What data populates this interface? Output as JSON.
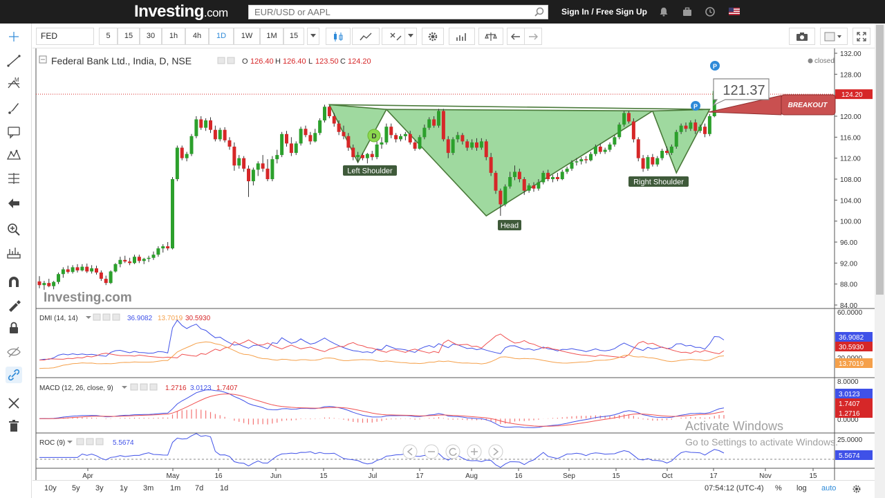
{
  "site": {
    "logo_main": "Investing",
    "logo_suffix": ".com",
    "search_placeholder": "EUR/USD or AAPL",
    "signin": "Sign In / Free Sign Up"
  },
  "toolbar": {
    "symbol": "FED",
    "intervals": [
      "5",
      "15",
      "30",
      "1h",
      "4h",
      "1D",
      "1W",
      "1M",
      "15"
    ],
    "active_interval": "1D"
  },
  "legend": {
    "title": "Federal Bank Ltd., India, D, NSE",
    "o_label": "O",
    "o": "126.40",
    "h_label": "H",
    "h": "126.40",
    "l_label": "L",
    "l": "123.50",
    "c_label": "C",
    "c": "124.20",
    "status": "closed"
  },
  "watermark": "Investing.com",
  "annotations": {
    "left_shoulder": "Left Shoulder",
    "head": "Head",
    "right_shoulder": "Right Shoulder",
    "breakout": "BREAKOUT",
    "price_callout": "121.37",
    "d_marker": "D",
    "p_marker": "P"
  },
  "price_axis": {
    "ticks": [
      "132.00",
      "128.00",
      "124.00",
      "120.00",
      "116.00",
      "112.00",
      "108.00",
      "104.00",
      "100.00",
      "96.00",
      "92.00",
      "88.00",
      "84.00"
    ],
    "last_price": "124.20"
  },
  "indicators": {
    "dmi": {
      "label": "DMI (14, 14)",
      "v1": "36.9082",
      "v2": "13.7019",
      "v3": "30.5930",
      "axis": [
        "60.0000",
        "20.0000"
      ]
    },
    "macd": {
      "label": "MACD (12, 26, close, 9)",
      "v1": "1.2716",
      "v2": "3.0123",
      "v3": "1.7407",
      "axis": [
        "8.0000",
        "4.0000",
        "0.0000"
      ]
    },
    "roc": {
      "label": "ROC (9)",
      "v1": "5.5674",
      "axis": [
        "25.0000"
      ]
    }
  },
  "time_axis": [
    "Apr",
    "May",
    "16",
    "Jun",
    "15",
    "Jul",
    "17",
    "Aug",
    "16",
    "Sep",
    "15",
    "Oct",
    "17",
    "Nov",
    "15"
  ],
  "bottom": {
    "ranges": [
      "10y",
      "5y",
      "3y",
      "1y",
      "3m",
      "1m",
      "7d",
      "1d"
    ],
    "clock": "07:54:12 (UTC-4)",
    "pct": "%",
    "log": "log",
    "auto": "auto"
  },
  "os_overlay": {
    "line1": "Activate Windows",
    "line2": "Go to Settings to activate Windows."
  },
  "colors": {
    "up": "#2ca02c",
    "down": "#d62728",
    "pattern_fill": "#8fd18f",
    "dmi_plus": "#3f51e8",
    "dmi_minus": "#f05050",
    "adx": "#f5a04a",
    "accent": "#2e8ad8"
  },
  "chart_data": {
    "type": "candlestick",
    "title": "Federal Bank Ltd., India, D, NSE",
    "ylim": [
      84,
      132
    ],
    "pattern": {
      "name": "Head and Shoulders (inverse)",
      "points": [
        {
          "label": "",
          "x": "Jun 15",
          "y": 122.2
        },
        {
          "label": "Left Shoulder",
          "x": "Jul 3",
          "y": 111.2
        },
        {
          "label": "",
          "x": "Jul 24",
          "y": 121.3
        },
        {
          "label": "Head",
          "x": "Aug 14",
          "y": 101.0
        },
        {
          "label": "",
          "x": "Sep 17",
          "y": 121.0
        },
        {
          "label": "Right Shoulder",
          "x": "Sep 27",
          "y": 109.2
        },
        {
          "label": "",
          "x": "Oct 17",
          "y": 121.3
        }
      ]
    },
    "last_close": 124.2,
    "candles": [
      {
        "o": 88.5,
        "h": 89.5,
        "l": 87.2,
        "c": 87.8
      },
      {
        "o": 87.8,
        "h": 88.6,
        "l": 86.9,
        "c": 88.2
      },
      {
        "o": 88.2,
        "h": 89.0,
        "l": 87.4,
        "c": 87.6
      },
      {
        "o": 87.6,
        "h": 88.6,
        "l": 87.0,
        "c": 88.4
      },
      {
        "o": 88.4,
        "h": 90.2,
        "l": 88.0,
        "c": 89.9
      },
      {
        "o": 89.9,
        "h": 91.2,
        "l": 89.2,
        "c": 90.8
      },
      {
        "o": 90.8,
        "h": 91.5,
        "l": 90.0,
        "c": 90.3
      },
      {
        "o": 90.3,
        "h": 91.6,
        "l": 90.0,
        "c": 91.2
      },
      {
        "o": 91.2,
        "h": 91.8,
        "l": 90.2,
        "c": 90.6
      },
      {
        "o": 90.6,
        "h": 91.8,
        "l": 90.4,
        "c": 91.3
      },
      {
        "o": 91.3,
        "h": 91.9,
        "l": 90.1,
        "c": 90.4
      },
      {
        "o": 90.4,
        "h": 91.6,
        "l": 90.0,
        "c": 91.0
      },
      {
        "o": 91.0,
        "h": 91.5,
        "l": 89.8,
        "c": 90.2
      },
      {
        "o": 90.2,
        "h": 90.6,
        "l": 88.6,
        "c": 89.0
      },
      {
        "o": 89.0,
        "h": 89.6,
        "l": 87.8,
        "c": 88.2
      },
      {
        "o": 88.2,
        "h": 90.6,
        "l": 88.0,
        "c": 90.4
      },
      {
        "o": 90.4,
        "h": 92.0,
        "l": 90.2,
        "c": 91.8
      },
      {
        "o": 91.8,
        "h": 93.2,
        "l": 91.2,
        "c": 92.6
      },
      {
        "o": 92.6,
        "h": 93.4,
        "l": 92.0,
        "c": 92.3
      },
      {
        "o": 92.3,
        "h": 93.0,
        "l": 91.6,
        "c": 92.0
      },
      {
        "o": 92.0,
        "h": 93.6,
        "l": 91.8,
        "c": 93.2
      },
      {
        "o": 93.2,
        "h": 93.6,
        "l": 92.0,
        "c": 92.4
      },
      {
        "o": 92.4,
        "h": 93.0,
        "l": 91.8,
        "c": 92.8
      },
      {
        "o": 92.8,
        "h": 93.4,
        "l": 92.2,
        "c": 93.0
      },
      {
        "o": 93.0,
        "h": 94.2,
        "l": 92.6,
        "c": 93.6
      },
      {
        "o": 93.6,
        "h": 95.2,
        "l": 93.2,
        "c": 94.8
      },
      {
        "o": 94.8,
        "h": 95.6,
        "l": 94.0,
        "c": 95.2
      },
      {
        "o": 95.2,
        "h": 96.0,
        "l": 94.4,
        "c": 94.8
      },
      {
        "o": 94.8,
        "h": 108.4,
        "l": 94.6,
        "c": 108.0
      },
      {
        "o": 108.0,
        "h": 114.4,
        "l": 107.6,
        "c": 114.0
      },
      {
        "o": 114.0,
        "h": 114.4,
        "l": 111.6,
        "c": 112.0
      },
      {
        "o": 112.0,
        "h": 113.2,
        "l": 111.4,
        "c": 112.8
      },
      {
        "o": 112.8,
        "h": 116.6,
        "l": 112.4,
        "c": 116.2
      },
      {
        "o": 116.2,
        "h": 120.0,
        "l": 115.8,
        "c": 119.4
      },
      {
        "o": 119.4,
        "h": 120.0,
        "l": 117.4,
        "c": 117.8
      },
      {
        "o": 117.8,
        "h": 119.6,
        "l": 117.2,
        "c": 119.2
      },
      {
        "o": 119.2,
        "h": 119.8,
        "l": 116.8,
        "c": 117.4
      },
      {
        "o": 117.4,
        "h": 118.2,
        "l": 115.2,
        "c": 115.6
      },
      {
        "o": 115.6,
        "h": 117.8,
        "l": 115.2,
        "c": 117.4
      },
      {
        "o": 117.4,
        "h": 117.9,
        "l": 115.0,
        "c": 115.4
      },
      {
        "o": 115.4,
        "h": 116.0,
        "l": 113.6,
        "c": 114.2
      },
      {
        "o": 114.2,
        "h": 115.0,
        "l": 109.6,
        "c": 110.6
      },
      {
        "o": 110.6,
        "h": 112.6,
        "l": 110.0,
        "c": 112.0
      },
      {
        "o": 112.0,
        "h": 112.4,
        "l": 109.4,
        "c": 110.0
      },
      {
        "o": 110.0,
        "h": 110.6,
        "l": 104.6,
        "c": 107.6
      },
      {
        "o": 107.6,
        "h": 110.2,
        "l": 106.8,
        "c": 109.8
      },
      {
        "o": 109.8,
        "h": 111.4,
        "l": 108.6,
        "c": 111.0
      },
      {
        "o": 111.0,
        "h": 112.6,
        "l": 109.4,
        "c": 110.0
      },
      {
        "o": 110.0,
        "h": 111.8,
        "l": 107.6,
        "c": 108.0
      },
      {
        "o": 108.0,
        "h": 112.4,
        "l": 107.6,
        "c": 111.8
      },
      {
        "o": 111.8,
        "h": 113.6,
        "l": 111.0,
        "c": 112.6
      },
      {
        "o": 112.6,
        "h": 117.0,
        "l": 112.2,
        "c": 116.6
      },
      {
        "o": 116.6,
        "h": 117.2,
        "l": 114.2,
        "c": 114.8
      },
      {
        "o": 114.8,
        "h": 116.0,
        "l": 112.4,
        "c": 113.0
      },
      {
        "o": 113.0,
        "h": 115.2,
        "l": 112.6,
        "c": 114.8
      },
      {
        "o": 114.8,
        "h": 118.0,
        "l": 114.4,
        "c": 117.6
      },
      {
        "o": 117.6,
        "h": 118.2,
        "l": 116.0,
        "c": 116.4
      },
      {
        "o": 116.4,
        "h": 117.0,
        "l": 114.6,
        "c": 115.2
      },
      {
        "o": 115.2,
        "h": 117.6,
        "l": 115.0,
        "c": 116.8
      },
      {
        "o": 116.8,
        "h": 119.6,
        "l": 116.4,
        "c": 119.2
      },
      {
        "o": 119.2,
        "h": 122.2,
        "l": 118.8,
        "c": 121.8
      },
      {
        "o": 121.8,
        "h": 122.0,
        "l": 119.6,
        "c": 120.0
      },
      {
        "o": 120.0,
        "h": 120.6,
        "l": 118.0,
        "c": 118.6
      },
      {
        "o": 118.6,
        "h": 119.2,
        "l": 116.4,
        "c": 117.0
      },
      {
        "o": 117.0,
        "h": 118.2,
        "l": 115.6,
        "c": 116.2
      },
      {
        "o": 116.2,
        "h": 116.8,
        "l": 113.4,
        "c": 114.0
      },
      {
        "o": 114.0,
        "h": 114.6,
        "l": 111.6,
        "c": 112.2
      },
      {
        "o": 112.2,
        "h": 113.2,
        "l": 111.2,
        "c": 112.6
      },
      {
        "o": 112.6,
        "h": 113.0,
        "l": 111.6,
        "c": 112.0
      },
      {
        "o": 112.0,
        "h": 113.0,
        "l": 111.0,
        "c": 112.8
      },
      {
        "o": 112.8,
        "h": 113.4,
        "l": 111.6,
        "c": 112.2
      },
      {
        "o": 112.2,
        "h": 115.2,
        "l": 111.8,
        "c": 114.6
      },
      {
        "o": 114.6,
        "h": 116.0,
        "l": 113.8,
        "c": 115.0
      },
      {
        "o": 115.0,
        "h": 118.6,
        "l": 114.6,
        "c": 118.0
      },
      {
        "o": 118.0,
        "h": 118.6,
        "l": 115.8,
        "c": 116.4
      },
      {
        "o": 116.4,
        "h": 116.8,
        "l": 115.0,
        "c": 115.6
      },
      {
        "o": 115.6,
        "h": 116.6,
        "l": 115.2,
        "c": 116.2
      },
      {
        "o": 116.2,
        "h": 117.0,
        "l": 115.4,
        "c": 116.6
      },
      {
        "o": 116.6,
        "h": 117.2,
        "l": 114.6,
        "c": 115.0
      },
      {
        "o": 115.0,
        "h": 115.4,
        "l": 113.4,
        "c": 113.8
      },
      {
        "o": 113.8,
        "h": 116.4,
        "l": 113.6,
        "c": 116.0
      },
      {
        "o": 116.0,
        "h": 118.4,
        "l": 115.6,
        "c": 117.8
      },
      {
        "o": 117.8,
        "h": 119.8,
        "l": 117.4,
        "c": 119.4
      },
      {
        "o": 119.4,
        "h": 120.0,
        "l": 117.8,
        "c": 118.2
      },
      {
        "o": 118.2,
        "h": 121.4,
        "l": 117.8,
        "c": 121.0
      },
      {
        "o": 121.0,
        "h": 121.4,
        "l": 115.2,
        "c": 115.6
      },
      {
        "o": 115.6,
        "h": 116.2,
        "l": 112.0,
        "c": 113.0
      },
      {
        "o": 113.0,
        "h": 116.0,
        "l": 112.6,
        "c": 115.6
      },
      {
        "o": 115.6,
        "h": 117.0,
        "l": 115.0,
        "c": 116.4
      },
      {
        "o": 116.4,
        "h": 116.8,
        "l": 114.6,
        "c": 115.2
      },
      {
        "o": 115.2,
        "h": 115.6,
        "l": 113.4,
        "c": 114.0
      },
      {
        "o": 114.0,
        "h": 115.6,
        "l": 113.6,
        "c": 115.0
      },
      {
        "o": 115.0,
        "h": 115.8,
        "l": 113.4,
        "c": 114.0
      },
      {
        "o": 114.0,
        "h": 115.8,
        "l": 113.6,
        "c": 115.2
      },
      {
        "o": 115.2,
        "h": 115.6,
        "l": 111.6,
        "c": 112.2
      },
      {
        "o": 112.2,
        "h": 113.0,
        "l": 108.6,
        "c": 109.2
      },
      {
        "o": 109.2,
        "h": 109.6,
        "l": 105.2,
        "c": 105.8
      },
      {
        "o": 105.8,
        "h": 106.2,
        "l": 101.0,
        "c": 103.2
      },
      {
        "o": 103.2,
        "h": 107.0,
        "l": 102.8,
        "c": 106.6
      },
      {
        "o": 106.6,
        "h": 109.4,
        "l": 106.2,
        "c": 108.4
      },
      {
        "o": 108.4,
        "h": 110.6,
        "l": 107.8,
        "c": 109.4
      },
      {
        "o": 109.4,
        "h": 110.0,
        "l": 107.4,
        "c": 108.0
      },
      {
        "o": 108.0,
        "h": 108.4,
        "l": 105.0,
        "c": 105.8
      },
      {
        "o": 105.8,
        "h": 107.2,
        "l": 105.4,
        "c": 106.8
      },
      {
        "o": 106.8,
        "h": 107.4,
        "l": 105.6,
        "c": 106.2
      },
      {
        "o": 106.2,
        "h": 108.0,
        "l": 105.8,
        "c": 107.4
      },
      {
        "o": 107.4,
        "h": 109.6,
        "l": 107.0,
        "c": 109.2
      },
      {
        "o": 109.2,
        "h": 109.8,
        "l": 107.6,
        "c": 108.0
      },
      {
        "o": 108.0,
        "h": 108.8,
        "l": 107.4,
        "c": 108.4
      },
      {
        "o": 108.4,
        "h": 109.2,
        "l": 107.6,
        "c": 108.0
      },
      {
        "o": 108.0,
        "h": 109.8,
        "l": 107.8,
        "c": 109.4
      },
      {
        "o": 109.4,
        "h": 110.4,
        "l": 109.0,
        "c": 110.0
      },
      {
        "o": 110.0,
        "h": 111.6,
        "l": 109.6,
        "c": 111.2
      },
      {
        "o": 111.2,
        "h": 112.0,
        "l": 110.6,
        "c": 111.4
      },
      {
        "o": 111.4,
        "h": 112.2,
        "l": 110.8,
        "c": 111.8
      },
      {
        "o": 111.8,
        "h": 112.4,
        "l": 111.0,
        "c": 111.6
      },
      {
        "o": 111.6,
        "h": 113.2,
        "l": 111.4,
        "c": 112.8
      },
      {
        "o": 112.8,
        "h": 114.6,
        "l": 112.4,
        "c": 114.2
      },
      {
        "o": 114.2,
        "h": 114.8,
        "l": 112.8,
        "c": 113.2
      },
      {
        "o": 113.2,
        "h": 114.0,
        "l": 112.8,
        "c": 113.6
      },
      {
        "o": 113.6,
        "h": 115.0,
        "l": 113.2,
        "c": 114.6
      },
      {
        "o": 114.6,
        "h": 116.4,
        "l": 114.2,
        "c": 116.0
      },
      {
        "o": 116.0,
        "h": 118.8,
        "l": 115.6,
        "c": 118.4
      },
      {
        "o": 118.4,
        "h": 121.0,
        "l": 118.0,
        "c": 120.6
      },
      {
        "o": 120.6,
        "h": 121.0,
        "l": 118.6,
        "c": 119.0
      },
      {
        "o": 119.0,
        "h": 119.6,
        "l": 115.0,
        "c": 115.6
      },
      {
        "o": 115.6,
        "h": 116.0,
        "l": 111.4,
        "c": 112.0
      },
      {
        "o": 112.0,
        "h": 112.6,
        "l": 109.4,
        "c": 110.0
      },
      {
        "o": 110.0,
        "h": 112.6,
        "l": 109.6,
        "c": 112.2
      },
      {
        "o": 112.2,
        "h": 112.8,
        "l": 110.4,
        "c": 110.8
      },
      {
        "o": 110.8,
        "h": 112.4,
        "l": 110.4,
        "c": 112.0
      },
      {
        "o": 112.0,
        "h": 113.8,
        "l": 111.6,
        "c": 113.4
      },
      {
        "o": 113.4,
        "h": 114.2,
        "l": 112.6,
        "c": 113.0
      },
      {
        "o": 113.0,
        "h": 114.6,
        "l": 112.6,
        "c": 114.2
      },
      {
        "o": 114.2,
        "h": 117.4,
        "l": 113.8,
        "c": 117.0
      },
      {
        "o": 117.0,
        "h": 118.6,
        "l": 116.6,
        "c": 118.2
      },
      {
        "o": 118.2,
        "h": 118.8,
        "l": 117.0,
        "c": 117.6
      },
      {
        "o": 117.6,
        "h": 119.2,
        "l": 117.2,
        "c": 118.8
      },
      {
        "o": 118.8,
        "h": 119.4,
        "l": 116.6,
        "c": 117.2
      },
      {
        "o": 117.2,
        "h": 118.4,
        "l": 116.8,
        "c": 118.0
      },
      {
        "o": 118.0,
        "h": 118.6,
        "l": 116.0,
        "c": 116.6
      },
      {
        "o": 116.6,
        "h": 120.4,
        "l": 116.2,
        "c": 120.0
      },
      {
        "o": 120.0,
        "h": 125.0,
        "l": 119.8,
        "c": 124.8
      },
      {
        "o": 124.8,
        "h": 126.6,
        "l": 124.2,
        "c": 126.2
      },
      {
        "o": 126.4,
        "h": 126.4,
        "l": 123.5,
        "c": 124.2
      }
    ]
  }
}
